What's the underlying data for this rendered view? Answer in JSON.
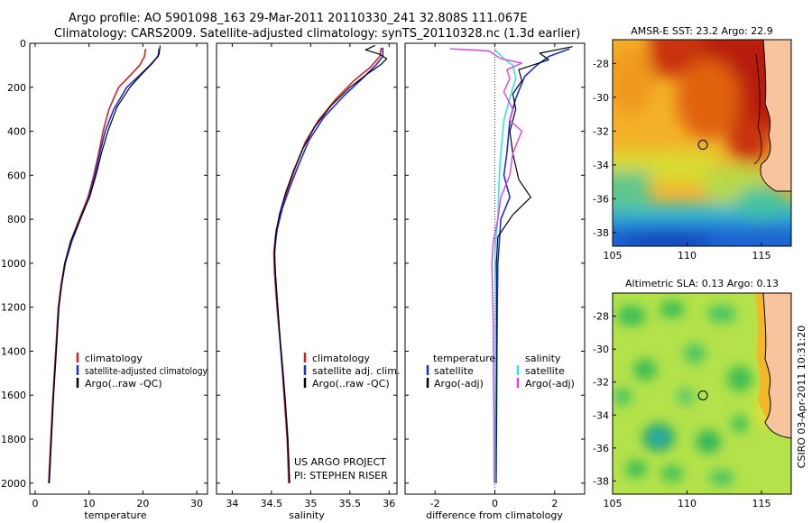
{
  "header": {
    "line1": "Argo profile: AO 5901098_163 29-Mar-2011 20110330_241 32.808S 111.067E",
    "line2": "Climatology: CARS2009. Satellite-adjusted climatology: synTS_20110328.nc (1.3d earlier)"
  },
  "side_label": "CSIRO 03-Apr-2011 10:31:20",
  "credit": {
    "line1": "US ARGO PROJECT",
    "line2": "PI: STEPHEN RISER"
  },
  "colors": {
    "climatology": "#d62020",
    "satellite": "#1c2cd6",
    "argo": "#000000",
    "sat_diff_salinity": "#38e0e8",
    "argo_diff_salinity": "#e040e0",
    "land": "#f7c49e"
  },
  "legend_temperature": [
    "climatology",
    "satellite-adjusted climatology",
    "Argo(..raw -QC)"
  ],
  "legend_salinity": [
    "climatology",
    "satellite adj. clim.",
    "Argo(..raw -QC)"
  ],
  "legend_difference": {
    "temperature_header": "temperature",
    "temperature_items": [
      "satellite",
      "Argo(-adj)"
    ],
    "salinity_header": "salinity",
    "salinity_items": [
      "satellite",
      "Argo(-adj)"
    ]
  },
  "chart_data": [
    {
      "type": "line",
      "xlabel": "temperature",
      "xlim": [
        -1,
        32
      ],
      "ylim": [
        2050,
        0
      ],
      "y_reversed": true,
      "xticks": [
        "0",
        "10",
        "20",
        "30"
      ],
      "yticks": [
        "0",
        "200",
        "400",
        "600",
        "800",
        "1000",
        "1200",
        "1400",
        "1600",
        "1800",
        "2000"
      ],
      "series": [
        {
          "name": "climatology",
          "color": "#d62020",
          "stroke_width": 1.6,
          "points": [
            [
              20.5,
              25
            ],
            [
              20.3,
              60
            ],
            [
              19.4,
              100
            ],
            [
              17.5,
              150
            ],
            [
              15.5,
              200
            ],
            [
              13.7,
              300
            ],
            [
              12.6,
              400
            ],
            [
              11.8,
              500
            ],
            [
              10.9,
              600
            ],
            [
              9.8,
              700
            ],
            [
              8.2,
              800
            ],
            [
              6.6,
              900
            ],
            [
              5.5,
              1000
            ],
            [
              4.8,
              1100
            ],
            [
              4.3,
              1200
            ],
            [
              3.8,
              1400
            ],
            [
              3.3,
              1600
            ],
            [
              2.9,
              1800
            ],
            [
              2.5,
              2000
            ]
          ]
        },
        {
          "name": "satellite-adjusted climatology",
          "color": "#1c2cd6",
          "stroke_width": 1.6,
          "points": [
            [
              23.0,
              25
            ],
            [
              22.8,
              60
            ],
            [
              21.3,
              100
            ],
            [
              19.2,
              150
            ],
            [
              17.0,
              200
            ],
            [
              14.6,
              300
            ],
            [
              13.0,
              400
            ],
            [
              12.0,
              500
            ],
            [
              11.1,
              600
            ],
            [
              10.0,
              700
            ],
            [
              8.4,
              800
            ],
            [
              6.8,
              900
            ],
            [
              5.6,
              1000
            ],
            [
              4.9,
              1100
            ],
            [
              4.4,
              1200
            ],
            [
              3.9,
              1400
            ],
            [
              3.4,
              1600
            ],
            [
              3.0,
              1800
            ],
            [
              2.6,
              2000
            ]
          ]
        },
        {
          "name": "Argo(..raw -QC)",
          "color": "#000000",
          "stroke_width": 1.2,
          "points": [
            [
              23.2,
              10
            ],
            [
              23.0,
              50
            ],
            [
              21.8,
              90
            ],
            [
              19.8,
              140
            ],
            [
              17.6,
              200
            ],
            [
              15.2,
              290
            ],
            [
              13.5,
              400
            ],
            [
              12.3,
              500
            ],
            [
              11.3,
              600
            ],
            [
              10.1,
              700
            ],
            [
              8.3,
              800
            ],
            [
              6.6,
              900
            ],
            [
              5.5,
              1000
            ],
            [
              4.9,
              1100
            ],
            [
              4.4,
              1200
            ],
            [
              3.9,
              1400
            ],
            [
              3.4,
              1600
            ],
            [
              3.0,
              1800
            ],
            [
              2.6,
              2000
            ]
          ]
        }
      ]
    },
    {
      "type": "line",
      "xlabel": "salinity",
      "xlim": [
        33.8,
        36.1
      ],
      "ylim": [
        2050,
        0
      ],
      "y_reversed": true,
      "xticks": [
        "34",
        "34.5",
        "35",
        "35.5",
        "36"
      ],
      "series": [
        {
          "name": "climatology",
          "color": "#d62020",
          "stroke_width": 1.6,
          "points": [
            [
              35.9,
              20
            ],
            [
              35.88,
              60
            ],
            [
              35.76,
              110
            ],
            [
              35.55,
              170
            ],
            [
              35.33,
              250
            ],
            [
              35.1,
              350
            ],
            [
              34.93,
              450
            ],
            [
              34.82,
              550
            ],
            [
              34.72,
              650
            ],
            [
              34.63,
              750
            ],
            [
              34.56,
              850
            ],
            [
              34.53,
              950
            ],
            [
              34.54,
              1050
            ],
            [
              34.57,
              1200
            ],
            [
              34.62,
              1400
            ],
            [
              34.66,
              1600
            ],
            [
              34.7,
              1800
            ],
            [
              34.72,
              2000
            ]
          ]
        },
        {
          "name": "satellite adj. clim.",
          "color": "#1c2cd6",
          "stroke_width": 1.6,
          "points": [
            [
              35.92,
              20
            ],
            [
              35.92,
              60
            ],
            [
              35.83,
              100
            ],
            [
              35.66,
              160
            ],
            [
              35.42,
              240
            ],
            [
              35.16,
              340
            ],
            [
              34.98,
              440
            ],
            [
              34.85,
              550
            ],
            [
              34.74,
              650
            ],
            [
              34.64,
              750
            ],
            [
              34.57,
              850
            ],
            [
              34.54,
              950
            ],
            [
              34.55,
              1050
            ],
            [
              34.58,
              1200
            ],
            [
              34.62,
              1400
            ],
            [
              34.67,
              1600
            ],
            [
              34.71,
              1800
            ],
            [
              34.73,
              2000
            ]
          ]
        },
        {
          "name": "Argo(..raw -QC)",
          "color": "#000000",
          "stroke_width": 1.2,
          "points": [
            [
              35.82,
              10
            ],
            [
              35.7,
              30
            ],
            [
              35.88,
              50
            ],
            [
              35.97,
              70
            ],
            [
              35.9,
              95
            ],
            [
              35.72,
              140
            ],
            [
              35.5,
              200
            ],
            [
              35.27,
              280
            ],
            [
              35.05,
              380
            ],
            [
              34.9,
              480
            ],
            [
              34.78,
              580
            ],
            [
              34.68,
              680
            ],
            [
              34.6,
              780
            ],
            [
              34.55,
              880
            ],
            [
              34.54,
              980
            ],
            [
              34.56,
              1100
            ],
            [
              34.6,
              1300
            ],
            [
              34.65,
              1500
            ],
            [
              34.69,
              1700
            ],
            [
              34.72,
              1900
            ],
            [
              34.73,
              2000
            ]
          ]
        }
      ]
    },
    {
      "type": "line",
      "xlabel": "difference from climatology",
      "xlim": [
        -3,
        3
      ],
      "ylim": [
        2050,
        0
      ],
      "y_reversed": true,
      "xticks": [
        "-2",
        "0",
        "2"
      ],
      "zero_line": true,
      "series": [
        {
          "name": "satellite",
          "group": "temperature",
          "color": "#1c2cd6",
          "stroke_width": 1.6,
          "points": [
            [
              2.5,
              25
            ],
            [
              1.8,
              60
            ],
            [
              1.4,
              100
            ],
            [
              1.0,
              150
            ],
            [
              0.7,
              250
            ],
            [
              0.5,
              350
            ],
            [
              0.4,
              500
            ],
            [
              0.3,
              600
            ],
            [
              0.5,
              700
            ],
            [
              0.2,
              800
            ],
            [
              0.15,
              900
            ],
            [
              0.1,
              1000
            ],
            [
              0.08,
              1200
            ],
            [
              0.07,
              1400
            ],
            [
              0.06,
              1600
            ],
            [
              0.05,
              1800
            ],
            [
              0.04,
              2000
            ]
          ]
        },
        {
          "name": "Argo(-adj)",
          "group": "temperature",
          "color": "#000000",
          "stroke_width": 1.2,
          "points": [
            [
              2.6,
              15
            ],
            [
              1.5,
              45
            ],
            [
              1.8,
              75
            ],
            [
              0.8,
              120
            ],
            [
              0.9,
              170
            ],
            [
              0.6,
              230
            ],
            [
              0.7,
              300
            ],
            [
              0.5,
              400
            ],
            [
              0.6,
              500
            ],
            [
              0.8,
              620
            ],
            [
              1.2,
              700
            ],
            [
              0.6,
              780
            ],
            [
              0.1,
              880
            ],
            [
              0.05,
              1000
            ],
            [
              0.05,
              1300
            ],
            [
              0.05,
              1600
            ],
            [
              0.04,
              1800
            ],
            [
              0.04,
              2000
            ]
          ]
        },
        {
          "name": "satellite",
          "group": "salinity",
          "color": "#38e0e8",
          "stroke_width": 1.6,
          "points": [
            [
              0.0,
              30
            ],
            [
              0.3,
              70
            ],
            [
              0.6,
              100
            ],
            [
              0.7,
              160
            ],
            [
              0.5,
              250
            ],
            [
              0.3,
              350
            ],
            [
              0.2,
              500
            ],
            [
              0.15,
              600
            ],
            [
              0.1,
              800
            ],
            [
              0.0,
              950
            ],
            [
              0.02,
              1100
            ],
            [
              0.02,
              1400
            ],
            [
              0.01,
              1700
            ],
            [
              0.01,
              2000
            ]
          ]
        },
        {
          "name": "Argo(-adj)",
          "group": "salinity",
          "color": "#e040e0",
          "stroke_width": 1.4,
          "points": [
            [
              -1.5,
              25
            ],
            [
              -0.2,
              35
            ],
            [
              0.2,
              70
            ],
            [
              0.9,
              90
            ],
            [
              0.4,
              120
            ],
            [
              0.5,
              160
            ],
            [
              0.3,
              220
            ],
            [
              0.6,
              300
            ],
            [
              0.5,
              350
            ],
            [
              0.9,
              400
            ],
            [
              0.6,
              500
            ],
            [
              0.5,
              600
            ],
            [
              0.2,
              700
            ],
            [
              0.1,
              800
            ],
            [
              -0.05,
              900
            ],
            [
              -0.1,
              1000
            ],
            [
              -0.08,
              1100
            ],
            [
              -0.05,
              1300
            ],
            [
              -0.05,
              1500
            ],
            [
              -0.03,
              1700
            ],
            [
              -0.02,
              2000
            ]
          ]
        }
      ]
    },
    {
      "type": "heatmap",
      "title": "AMSR-E SST: 23.2 Argo: 22.9",
      "xlim": [
        105,
        117
      ],
      "ylim": [
        -38.8,
        -26.6
      ],
      "xticks": [
        "105",
        "110",
        "115"
      ],
      "yticks": [
        "-28",
        "-30",
        "-32",
        "-34",
        "-36",
        "-38"
      ],
      "float_position": [
        111.067,
        -32.808
      ]
    },
    {
      "type": "heatmap",
      "title": "Altimetric SLA: 0.13 Argo: 0.13",
      "xlim": [
        105,
        117
      ],
      "ylim": [
        -38.8,
        -26.6
      ],
      "xticks": [
        "105",
        "110",
        "115"
      ],
      "yticks": [
        "-28",
        "-30",
        "-32",
        "-34",
        "-36",
        "-38"
      ],
      "float_position": [
        111.067,
        -32.808
      ]
    }
  ]
}
